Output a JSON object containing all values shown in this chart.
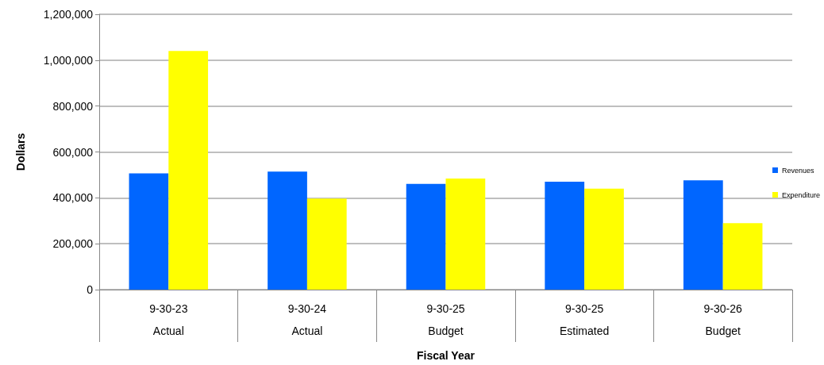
{
  "chart_data": {
    "type": "bar",
    "xlabel": "Fiscal Year",
    "ylabel": "Dollars",
    "categories": [
      "9-30-23\nActual",
      "9-30-24\nActual",
      "9-30-25\nBudget",
      "9-30-25\nEstimated",
      "9-30-26\nBudget"
    ],
    "series": [
      {
        "name": "Revenues",
        "color": "#0066ff",
        "values": [
          507000,
          514000,
          461000,
          470000,
          476000
        ]
      },
      {
        "name": "Expenditure",
        "color": "#ffff00",
        "values": [
          1040000,
          397000,
          484000,
          440000,
          290000
        ]
      }
    ],
    "ylim": [
      0,
      1200000
    ],
    "yticks": [
      {
        "value": 0,
        "label": "0"
      },
      {
        "value": 200000,
        "label": "200,000"
      },
      {
        "value": 400000,
        "label": "400,000"
      },
      {
        "value": 600000,
        "label": "600,000"
      },
      {
        "value": 800000,
        "label": "800,000"
      },
      {
        "value": 1000000,
        "label": "1,000,000"
      },
      {
        "value": 1200000,
        "label": "1,200,000"
      }
    ],
    "grid": "y",
    "legend": "right"
  }
}
